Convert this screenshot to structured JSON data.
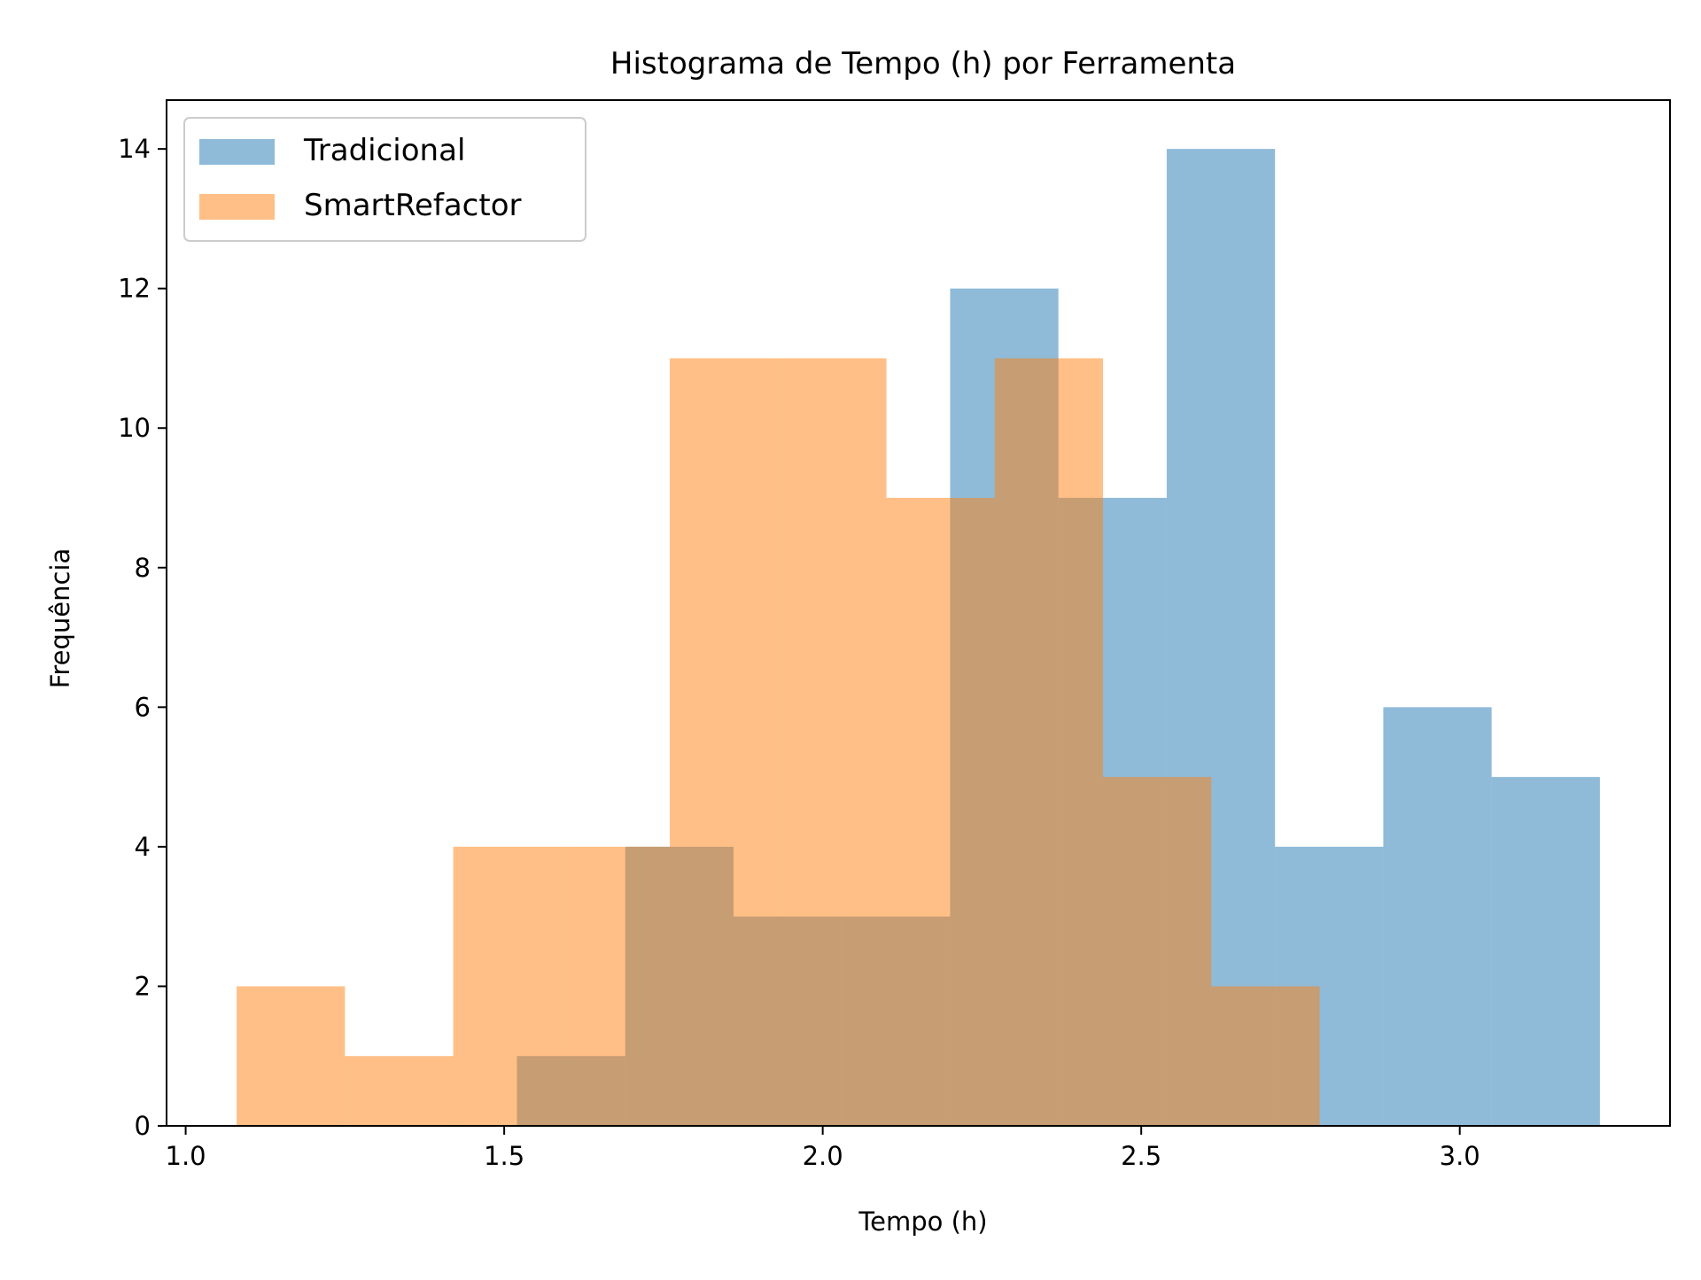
{
  "chart_data": {
    "type": "histogram",
    "title": "Histograma de Tempo (h) por Ferramenta",
    "xlabel": "Tempo (h)",
    "ylabel": "Frequência",
    "xlim": [
      0.97,
      3.33
    ],
    "ylim": [
      0,
      14.7
    ],
    "xticks": [
      1.0,
      1.5,
      2.0,
      2.5,
      3.0
    ],
    "xtick_labels": [
      "1.0",
      "1.5",
      "2.0",
      "2.5",
      "3.0"
    ],
    "yticks": [
      0,
      2,
      4,
      6,
      8,
      10,
      12,
      14
    ],
    "ytick_labels": [
      "0",
      "2",
      "4",
      "6",
      "8",
      "10",
      "12",
      "14"
    ],
    "grid": false,
    "legend_position": "upper-left",
    "series": [
      {
        "name": "Tradicional",
        "color": "#1f77b4",
        "opacity": 0.5,
        "bin_edges": [
          1.52,
          1.69,
          1.86,
          2.03,
          2.2,
          2.37,
          2.54,
          2.71,
          2.88,
          3.05,
          3.22
        ],
        "counts": [
          1,
          4,
          3,
          3,
          12,
          9,
          14,
          4,
          6,
          5
        ]
      },
      {
        "name": "SmartRefactor",
        "color": "#ff7f0e",
        "opacity": 0.5,
        "bin_edges": [
          1.08,
          1.25,
          1.42,
          1.59,
          1.76,
          1.93,
          2.1,
          2.27,
          2.44,
          2.61,
          2.78
        ],
        "counts": [
          2,
          1,
          4,
          4,
          11,
          11,
          9,
          11,
          5,
          2
        ]
      }
    ]
  }
}
